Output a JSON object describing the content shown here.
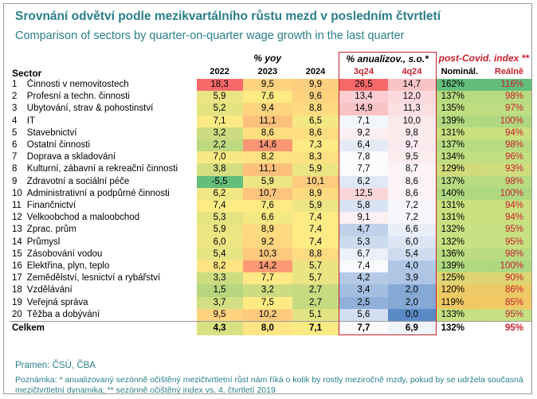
{
  "title": "Srovnání odvětví podle mezikvartálního růstu mezd v posledním čtvrtletí",
  "subtitle": "Comparison of sectors by quarter-on-quarter wage growth in the last quarter",
  "headers": {
    "sector": "Sector",
    "yoy_group": "% yoy",
    "ann_group": "% anualizov., s.o.*",
    "idx_group": "post-Covid. index **",
    "y2022": "2022",
    "y2023": "2023",
    "y2024": "2024",
    "q3": "3q24",
    "q4": "4q24",
    "nom": "Nominál.",
    "real": "Reálně"
  },
  "rows": [
    {
      "n": "1",
      "sector": "Činnosti v nemovitostech",
      "y2022": "18,3",
      "y2023": "9,5",
      "y2024": "9,9",
      "q3": "26,5",
      "q4": "14,7",
      "nom": "162%",
      "real": "116%"
    },
    {
      "n": "2",
      "sector": "Profesní a techn. činnosti",
      "y2022": "5,9",
      "y2023": "7,6",
      "y2024": "9,6",
      "q3": "13,4",
      "q4": "12,0",
      "nom": "137%",
      "real": "98%"
    },
    {
      "n": "3",
      "sector": "Ubytování, strav & pohostinství",
      "y2022": "5,2",
      "y2023": "9,4",
      "y2024": "8,8",
      "q3": "14,9",
      "q4": "11,3",
      "nom": "135%",
      "real": "97%"
    },
    {
      "n": "4",
      "sector": "IT",
      "y2022": "7,1",
      "y2023": "11,1",
      "y2024": "6,5",
      "q3": "7,1",
      "q4": "10,0",
      "nom": "139%",
      "real": "100%"
    },
    {
      "n": "5",
      "sector": "Stavebnictví",
      "y2022": "3,2",
      "y2023": "8,6",
      "y2024": "8,6",
      "q3": "9,2",
      "q4": "9,8",
      "nom": "131%",
      "real": "94%"
    },
    {
      "n": "6",
      "sector": "Ostatní činnosti",
      "y2022": "2,2",
      "y2023": "14,6",
      "y2024": "7,3",
      "q3": "6,4",
      "q4": "9,7",
      "nom": "137%",
      "real": "98%"
    },
    {
      "n": "7",
      "sector": "Doprava a skladování",
      "y2022": "7,0",
      "y2023": "8,2",
      "y2024": "8,3",
      "q3": "7,8",
      "q4": "9,5",
      "nom": "134%",
      "real": "96%"
    },
    {
      "n": "8",
      "sector": "Kulturní, zábavní a rekreační činnosti",
      "y2022": "3,8",
      "y2023": "11,1",
      "y2024": "5,9",
      "q3": "7,7",
      "q4": "8,7",
      "nom": "129%",
      "real": "93%"
    },
    {
      "n": "9",
      "sector": "Zdravotní a sociální péče",
      "y2022": "-5,5",
      "y2023": "5,9",
      "y2024": "10,1",
      "q3": "6,2",
      "q4": "8,6",
      "nom": "137%",
      "real": "98%"
    },
    {
      "n": "10",
      "sector": "Administrativní a podpůrné činnosti",
      "y2022": "6,2",
      "y2023": "10,7",
      "y2024": "8,9",
      "q3": "12,5",
      "q4": "8,6",
      "nom": "140%",
      "real": "100%"
    },
    {
      "n": "11",
      "sector": "Finančnictví",
      "y2022": "7,4",
      "y2023": "7,6",
      "y2024": "5,9",
      "q3": "5,8",
      "q4": "7,2",
      "nom": "131%",
      "real": "94%"
    },
    {
      "n": "12",
      "sector": "Velkoobchod a maloobchod",
      "y2022": "5,3",
      "y2023": "6,6",
      "y2024": "7,4",
      "q3": "9,1",
      "q4": "7,2",
      "nom": "131%",
      "real": "94%"
    },
    {
      "n": "13",
      "sector": "Zprac. prům",
      "y2022": "5,9",
      "y2023": "8,9",
      "y2024": "7,4",
      "q3": "4,7",
      "q4": "6,6",
      "nom": "132%",
      "real": "95%"
    },
    {
      "n": "14",
      "sector": "Průmysl",
      "y2022": "6,0",
      "y2023": "9,2",
      "y2024": "7,4",
      "q3": "5,3",
      "q4": "6,0",
      "nom": "132%",
      "real": "95%"
    },
    {
      "n": "15",
      "sector": "Zásobování vodou",
      "y2022": "5,4",
      "y2023": "10,3",
      "y2024": "8,8",
      "q3": "6,7",
      "q4": "5,4",
      "nom": "136%",
      "real": "98%"
    },
    {
      "n": "16",
      "sector": "Elektřina, plyn, teplo",
      "y2022": "8,2",
      "y2023": "14,2",
      "y2024": "5,7",
      "q3": "7,4",
      "q4": "4,0",
      "nom": "139%",
      "real": "100%"
    },
    {
      "n": "17",
      "sector": "Zemědělství, lesnictví a rybářství",
      "y2022": "3,3",
      "y2023": "7,7",
      "y2024": "5,7",
      "q3": "4,2",
      "q4": "3,9",
      "nom": "125%",
      "real": "90%"
    },
    {
      "n": "18",
      "sector": "Vzdělávání",
      "y2022": "1,5",
      "y2023": "3,2",
      "y2024": "2,7",
      "q3": "3,4",
      "q4": "2,0",
      "nom": "120%",
      "real": "86%"
    },
    {
      "n": "19",
      "sector": "Veřejná správa",
      "y2022": "3,7",
      "y2023": "7,5",
      "y2024": "2,7",
      "q3": "2,5",
      "q4": "2,0",
      "nom": "119%",
      "real": "85%"
    },
    {
      "n": "20",
      "sector": "Těžba a dobývání",
      "y2022": "9,5",
      "y2023": "10,2",
      "y2024": "5,1",
      "q3": "5,6",
      "q4": "0,0",
      "nom": "133%",
      "real": "95%"
    }
  ],
  "total": {
    "sector": "Celkem",
    "y2022": "4,3",
    "y2023": "8,0",
    "y2024": "7,1",
    "q3": "7,7",
    "q4": "6,9",
    "nom": "132%",
    "real": "95%"
  },
  "source": "Pramen: ČSÚ, ČBA",
  "note": "Poznámka: * anualizovaný sezónně očištěný mezičtvrtletní růst nám říká o kolik by rostly meziročně mzdy, pokud by se udržela současná mezičtvrtletní dynamika; ** sezónně očištěný index vs. 4. čtvrtletí 2019"
}
